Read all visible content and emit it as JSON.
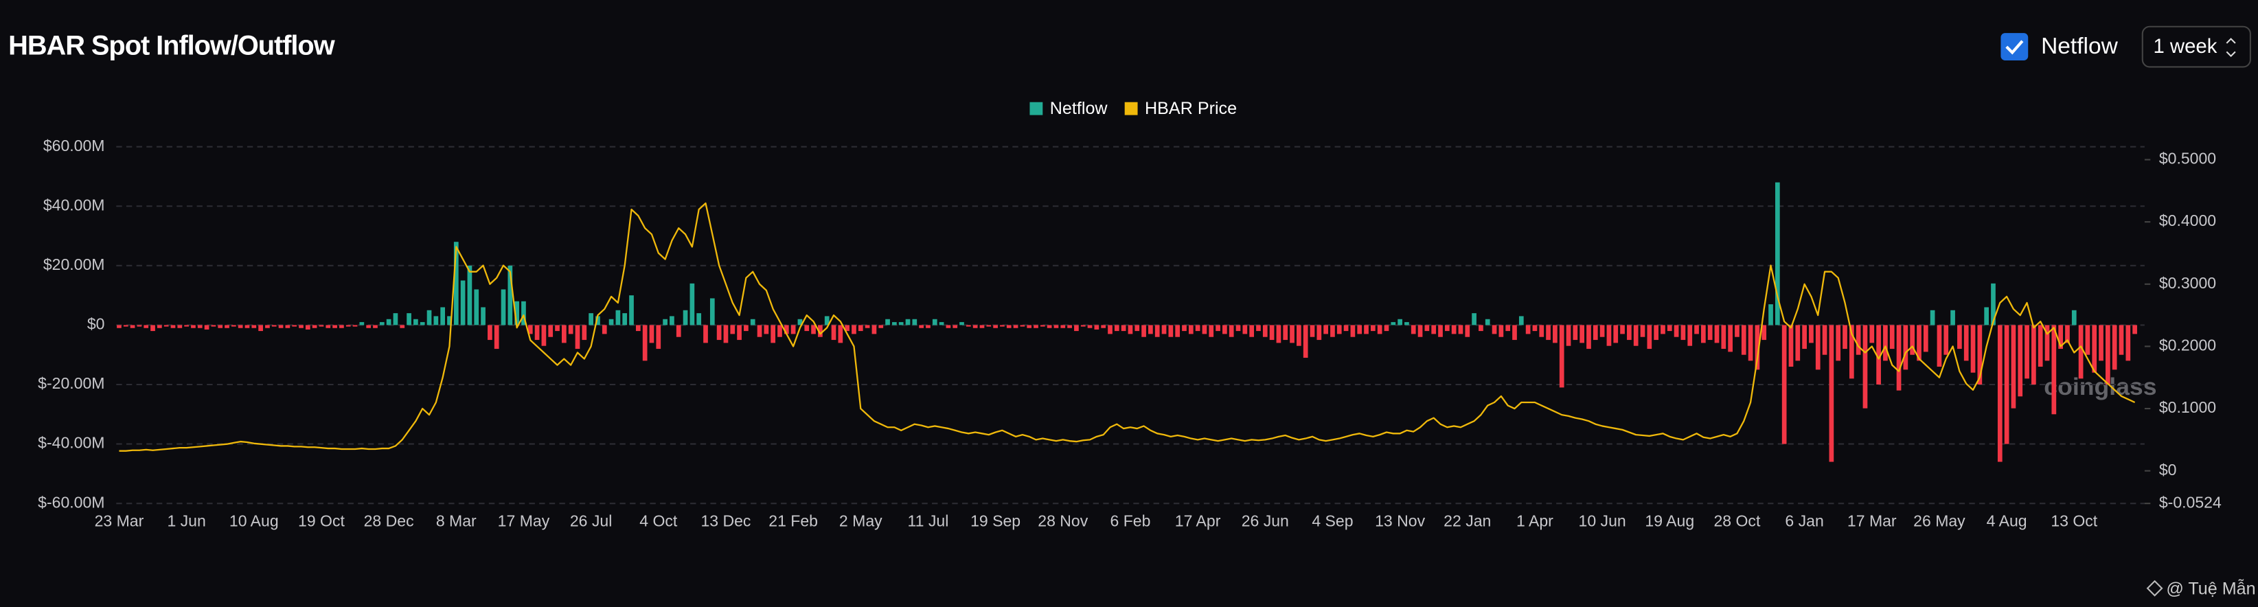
{
  "chart_data": {
    "type": "bar-line",
    "title": "HBAR Spot Inflow/Outflow",
    "controls": {
      "toggle_label": "Netflow",
      "toggle_checked": true,
      "period": "1 week"
    },
    "watermark": "coinglass",
    "credit": "@ Tuệ Mẫn",
    "grid": true,
    "categories": [
      "23 Mar",
      null,
      null,
      null,
      null,
      null,
      null,
      null,
      null,
      null,
      "1 Jun",
      null,
      null,
      null,
      null,
      null,
      null,
      null,
      null,
      null,
      "10 Aug",
      null,
      null,
      null,
      null,
      null,
      null,
      null,
      null,
      null,
      "19 Oct",
      null,
      null,
      null,
      null,
      null,
      null,
      null,
      null,
      null,
      "28 Dec",
      null,
      null,
      null,
      null,
      null,
      null,
      null,
      null,
      null,
      "8 Mar",
      null,
      null,
      null,
      null,
      null,
      null,
      null,
      null,
      null,
      "17 May",
      null,
      null,
      null,
      null,
      null,
      null,
      null,
      null,
      null,
      "26 Jul",
      null,
      null,
      null,
      null,
      null,
      null,
      null,
      null,
      null,
      "4 Oct",
      null,
      null,
      null,
      null,
      null,
      null,
      null,
      null,
      null,
      "13 Dec",
      null,
      null,
      null,
      null,
      null,
      null,
      null,
      null,
      null,
      "21 Feb",
      null,
      null,
      null,
      null,
      null,
      null,
      null,
      null,
      null,
      "2 May",
      null,
      null,
      null,
      null,
      null,
      null,
      null,
      null,
      null,
      "11 Jul",
      null,
      null,
      null,
      null,
      null,
      null,
      null,
      null,
      null,
      "19 Sep",
      null,
      null,
      null,
      null,
      null,
      null,
      null,
      null,
      null,
      "28 Nov",
      null,
      null,
      null,
      null,
      null,
      null,
      null,
      null,
      null,
      "6 Feb",
      null,
      null,
      null,
      null,
      null,
      null,
      null,
      null,
      null,
      "17 Apr",
      null,
      null,
      null,
      null,
      null,
      null,
      null,
      null,
      null,
      "26 Jun",
      null,
      null,
      null,
      null,
      null,
      null,
      null,
      null,
      null,
      "4 Sep",
      null,
      null,
      null,
      null,
      null,
      null,
      null,
      null,
      null,
      "13 Nov",
      null,
      null,
      null,
      null,
      null,
      null,
      null,
      null,
      null,
      "22 Jan",
      null,
      null,
      null,
      null,
      null,
      null,
      null,
      null,
      null,
      "1 Apr",
      null,
      null,
      null,
      null,
      null,
      null,
      null,
      null,
      null,
      "10 Jun",
      null,
      null,
      null,
      null,
      null,
      null,
      null,
      null,
      null,
      "19 Aug",
      null,
      null,
      null,
      null,
      null,
      null,
      null,
      null,
      null,
      "28 Oct",
      null,
      null,
      null,
      null,
      null,
      null,
      null,
      null,
      null,
      "6 Jan",
      null,
      null,
      null,
      null,
      null,
      null,
      null,
      null,
      null,
      "17 Mar",
      null,
      null,
      null,
      null,
      null,
      null,
      null,
      null,
      null,
      "26 May",
      null,
      null,
      null,
      null,
      null,
      null,
      null,
      null,
      null,
      "4 Aug",
      null,
      null,
      null,
      null,
      null,
      null,
      null,
      null,
      null,
      "13 Oct",
      null,
      null,
      null,
      null,
      null,
      null,
      null,
      null,
      null
    ],
    "ylim": [
      -60,
      60
    ],
    "yticks": [
      {
        "value": 60,
        "label": "$60.00M"
      },
      {
        "value": 40,
        "label": "$40.00M"
      },
      {
        "value": 20,
        "label": "$20.00M"
      },
      {
        "value": 0,
        "label": "$0"
      },
      {
        "value": -20,
        "label": "$-20.00M"
      },
      {
        "value": -40,
        "label": "$-40.00M"
      },
      {
        "value": -60,
        "label": "$-60.00M"
      }
    ],
    "y2lim": [
      -0.0524,
      0.5
    ],
    "y2ticks": [
      {
        "value": 0.5,
        "label": "$0.5000"
      },
      {
        "value": 0.4,
        "label": "$0.4000"
      },
      {
        "value": 0.3,
        "label": "$0.3000"
      },
      {
        "value": 0.2,
        "label": "$0.2000"
      },
      {
        "value": 0.1,
        "label": "$0.1000"
      },
      {
        "value": 0,
        "label": "$0"
      },
      {
        "value": -0.0524,
        "label": "$-0.0524"
      }
    ],
    "series": [
      {
        "name": "Netflow",
        "type": "bar",
        "color": "#22ab94",
        "negative_color": "#f23645",
        "values": [
          -1,
          -0.5,
          -1,
          -0.5,
          -1,
          -2,
          -1,
          -0.5,
          -1,
          -1,
          -0.5,
          -1,
          -1,
          -1.5,
          -0.5,
          -1,
          -1,
          -0.5,
          -1,
          -1,
          -1,
          -2,
          -1,
          -0.5,
          -1,
          -1,
          -0.5,
          -1,
          -1.5,
          -1,
          -0.5,
          -1,
          -1,
          -1,
          -0.5,
          -0.5,
          1,
          -1,
          -1,
          1,
          2,
          4,
          -1,
          4,
          2,
          1,
          5,
          3,
          6,
          3,
          28,
          15,
          20,
          12,
          6,
          -5,
          -8,
          12,
          20,
          8,
          8,
          -3,
          -5,
          -7,
          -4,
          -2,
          -6,
          -3,
          -8,
          -5,
          4,
          3,
          -3,
          2,
          5,
          4,
          10,
          -2,
          -12,
          -6,
          -8,
          2,
          3,
          -4,
          5,
          14,
          4,
          -6,
          9,
          -5,
          -6,
          -3,
          -5,
          -2,
          2,
          -4,
          -3,
          -6,
          -4,
          -3,
          -3,
          2,
          -2,
          -3,
          -4,
          3,
          -5,
          -6,
          -2,
          -3,
          -2,
          -1,
          -3,
          -1,
          2,
          1,
          1,
          2,
          2,
          -1,
          -1,
          2,
          1,
          -1,
          -1,
          1,
          -0.5,
          -1,
          -1,
          -0.5,
          -1,
          -0.5,
          -1,
          -1,
          -0.5,
          -1,
          -1,
          -0.5,
          -1,
          -1,
          -1,
          -1,
          -2,
          -0.5,
          -1,
          -1.5,
          -1,
          -3,
          -2,
          -2,
          -3,
          -2,
          -4,
          -3,
          -4,
          -3,
          -4,
          -4,
          -2,
          -3,
          -2,
          -3,
          -4,
          -2,
          -3,
          -4,
          -2,
          -3,
          -4,
          -2,
          -4,
          -5,
          -6,
          -5,
          -6,
          -7,
          -11,
          -4,
          -5,
          -3,
          -4,
          -3,
          -2,
          -4,
          -3,
          -3,
          -2,
          -3,
          -2,
          1,
          2,
          1,
          -3,
          -4,
          -2,
          -3,
          -4,
          -2,
          -3,
          -3,
          -4,
          4,
          -2,
          2,
          -3,
          -4,
          -2,
          -5,
          3,
          -3,
          -2,
          -4,
          -5,
          -6,
          -21,
          -7,
          -5,
          -6,
          -8,
          -5,
          -4,
          -7,
          -6,
          -3,
          -5,
          -7,
          -4,
          -8,
          -5,
          -3,
          -2,
          -4,
          -5,
          -7,
          -3,
          -6,
          -5,
          -6,
          -8,
          -9,
          -4,
          -10,
          -12,
          -15,
          -5,
          7,
          48,
          -40,
          -14,
          -12,
          -8,
          -6,
          -15,
          -10,
          -46,
          -12,
          -8,
          -18,
          -10,
          -28,
          -6,
          -20,
          -12,
          -8,
          -22,
          -15,
          -10,
          -12,
          -9,
          5,
          -14,
          -10,
          5,
          -8,
          -12,
          -16,
          -20,
          6,
          14,
          -46,
          -40,
          -28,
          -24,
          -18,
          -20,
          -14,
          -12,
          -30,
          -8,
          -6,
          5,
          -18,
          -10,
          -16,
          -12,
          -20,
          -15,
          -10,
          -12,
          -3
        ]
      },
      {
        "name": "HBAR Price",
        "type": "line",
        "axis": "y2",
        "color": "#f0b90b",
        "values": [
          0.032,
          0.032,
          0.033,
          0.033,
          0.034,
          0.033,
          0.034,
          0.035,
          0.036,
          0.037,
          0.037,
          0.038,
          0.039,
          0.04,
          0.041,
          0.042,
          0.043,
          0.045,
          0.047,
          0.046,
          0.044,
          0.043,
          0.042,
          0.041,
          0.04,
          0.04,
          0.039,
          0.039,
          0.038,
          0.038,
          0.037,
          0.036,
          0.036,
          0.035,
          0.035,
          0.035,
          0.036,
          0.035,
          0.035,
          0.036,
          0.036,
          0.04,
          0.05,
          0.065,
          0.08,
          0.1,
          0.09,
          0.11,
          0.15,
          0.2,
          0.36,
          0.34,
          0.32,
          0.32,
          0.33,
          0.3,
          0.31,
          0.33,
          0.32,
          0.23,
          0.25,
          0.21,
          0.2,
          0.19,
          0.18,
          0.17,
          0.18,
          0.17,
          0.19,
          0.18,
          0.2,
          0.25,
          0.26,
          0.28,
          0.27,
          0.33,
          0.42,
          0.41,
          0.39,
          0.38,
          0.35,
          0.34,
          0.37,
          0.39,
          0.38,
          0.36,
          0.42,
          0.43,
          0.38,
          0.33,
          0.3,
          0.27,
          0.25,
          0.31,
          0.32,
          0.3,
          0.29,
          0.26,
          0.24,
          0.22,
          0.2,
          0.23,
          0.25,
          0.24,
          0.22,
          0.23,
          0.25,
          0.24,
          0.22,
          0.2,
          0.1,
          0.09,
          0.08,
          0.075,
          0.07,
          0.07,
          0.065,
          0.07,
          0.075,
          0.073,
          0.07,
          0.072,
          0.07,
          0.068,
          0.065,
          0.062,
          0.06,
          0.062,
          0.06,
          0.058,
          0.062,
          0.065,
          0.06,
          0.055,
          0.058,
          0.055,
          0.05,
          0.052,
          0.05,
          0.048,
          0.05,
          0.048,
          0.047,
          0.049,
          0.05,
          0.055,
          0.058,
          0.07,
          0.075,
          0.068,
          0.07,
          0.068,
          0.072,
          0.065,
          0.06,
          0.058,
          0.055,
          0.057,
          0.055,
          0.052,
          0.05,
          0.052,
          0.05,
          0.048,
          0.05,
          0.052,
          0.05,
          0.048,
          0.05,
          0.049,
          0.05,
          0.052,
          0.055,
          0.057,
          0.053,
          0.05,
          0.052,
          0.055,
          0.05,
          0.048,
          0.05,
          0.052,
          0.055,
          0.058,
          0.06,
          0.057,
          0.055,
          0.058,
          0.062,
          0.06,
          0.06,
          0.065,
          0.063,
          0.07,
          0.08,
          0.085,
          0.075,
          0.07,
          0.072,
          0.07,
          0.075,
          0.08,
          0.09,
          0.105,
          0.11,
          0.12,
          0.105,
          0.1,
          0.11,
          0.11,
          0.11,
          0.105,
          0.1,
          0.095,
          0.09,
          0.088,
          0.085,
          0.083,
          0.08,
          0.075,
          0.072,
          0.07,
          0.068,
          0.066,
          0.062,
          0.058,
          0.057,
          0.056,
          0.058,
          0.06,
          0.055,
          0.052,
          0.05,
          0.055,
          0.06,
          0.054,
          0.052,
          0.055,
          0.058,
          0.055,
          0.06,
          0.08,
          0.11,
          0.18,
          0.26,
          0.33,
          0.28,
          0.24,
          0.23,
          0.26,
          0.3,
          0.28,
          0.25,
          0.32,
          0.32,
          0.31,
          0.27,
          0.22,
          0.2,
          0.19,
          0.2,
          0.18,
          0.2,
          0.17,
          0.16,
          0.19,
          0.2,
          0.18,
          0.17,
          0.16,
          0.15,
          0.18,
          0.2,
          0.16,
          0.14,
          0.13,
          0.15,
          0.2,
          0.24,
          0.27,
          0.28,
          0.26,
          0.25,
          0.27,
          0.23,
          0.24,
          0.22,
          0.23,
          0.2,
          0.21,
          0.19,
          0.2,
          0.18,
          0.16,
          0.15,
          0.14,
          0.13,
          0.12,
          0.115,
          0.11
        ]
      }
    ]
  }
}
